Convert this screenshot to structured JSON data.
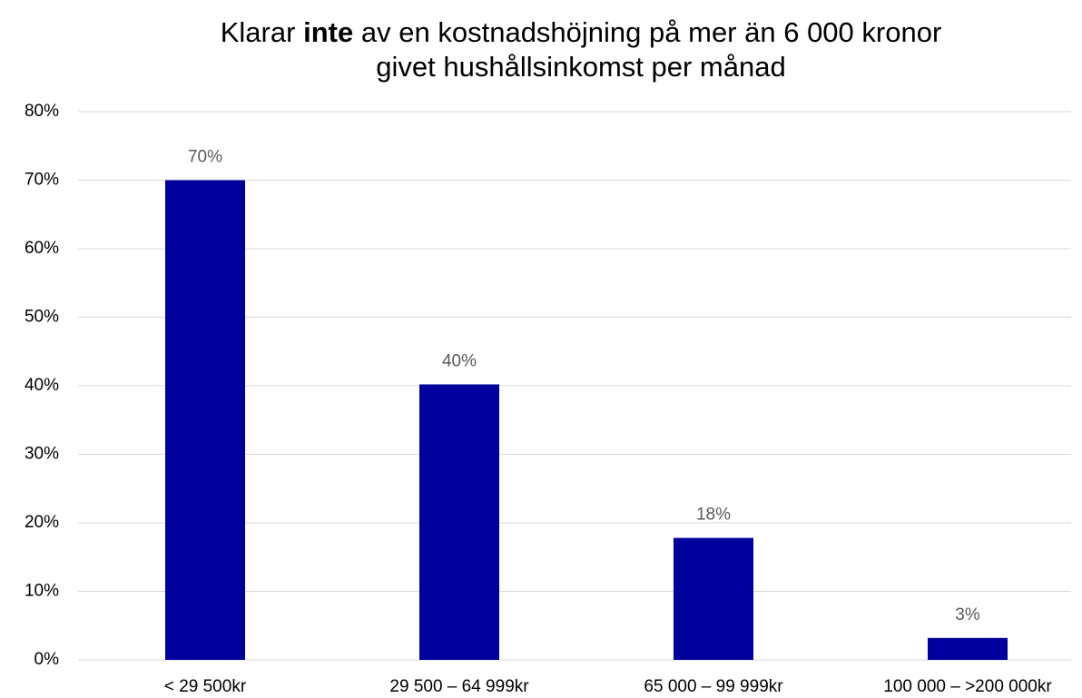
{
  "chart_data": {
    "type": "bar",
    "title": [
      "Klarar",
      "inte",
      "av en kostnadshöjning på mer än 6 000 kronor",
      "givet hushållsinkomst per månad"
    ],
    "title_bold": [
      1
    ],
    "categories": [
      "< 29 500kr",
      "29 500 – 64 999kr",
      "65 000 – 99 999kr",
      "100 000 – >200 000kr"
    ],
    "values": [
      70,
      40.2,
      17.8,
      3.2
    ],
    "value_labels": [
      "70%",
      "40%",
      "18%",
      "3%"
    ],
    "color": "#00009c",
    "ylim": [
      0,
      80
    ],
    "yticks": [
      {
        "value": 0,
        "label": "0%"
      },
      {
        "value": 10,
        "label": "10%"
      },
      {
        "value": 20,
        "label": "20%"
      },
      {
        "value": 30,
        "label": "30%"
      },
      {
        "value": 40,
        "label": "40%"
      },
      {
        "value": 50,
        "label": "50%"
      },
      {
        "value": 60,
        "label": "60%"
      },
      {
        "value": 70,
        "label": "70%"
      },
      {
        "value": 80,
        "label": "80%"
      }
    ],
    "grid": true
  }
}
